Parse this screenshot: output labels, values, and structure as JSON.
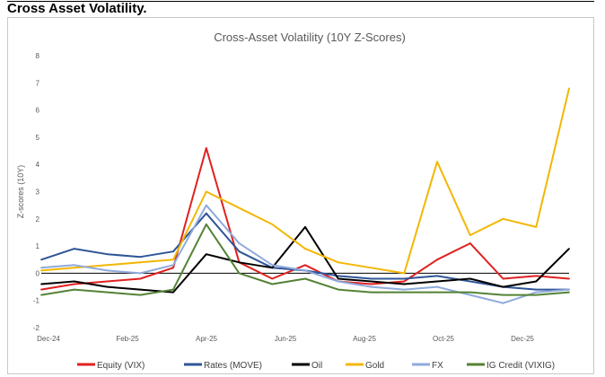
{
  "page": {
    "heading": "Cross Asset Volatility."
  },
  "chart_data": {
    "type": "line",
    "title": "Cross-Asset Volatility (10Y Z-Scores)",
    "ylabel": "Z-scores (10Y)",
    "xlabel": "",
    "ylim": [
      -2,
      8
    ],
    "yticks": [
      -2,
      -1,
      0,
      1,
      2,
      3,
      4,
      5,
      6,
      7,
      8
    ],
    "x_ticks": [
      "Dec-24",
      "Feb-25",
      "Apr-25",
      "Jun-25",
      "Aug-25",
      "Oct-25",
      "Dec-25"
    ],
    "x_points": [
      "Dec-24",
      "Jan-25",
      "Feb-25",
      "Mar-25",
      "Apr-25 early",
      "Apr-25",
      "Apr-25 late",
      "May-25",
      "Jun-25",
      "Jul-25",
      "Aug-25",
      "Sep-25",
      "Oct-25",
      "Nov-25",
      "Dec-25",
      "Jan-26",
      "Feb-26"
    ],
    "grid": false,
    "legend_position": "bottom",
    "zero_line": true,
    "series": [
      {
        "name": "Equity (VIX)",
        "color": "#e02020",
        "values": [
          -0.6,
          -0.4,
          -0.3,
          -0.2,
          0.2,
          4.6,
          0.4,
          -0.2,
          0.3,
          -0.3,
          -0.4,
          -0.3,
          0.5,
          1.1,
          -0.2,
          -0.1,
          -0.2
        ]
      },
      {
        "name": "Rates (MOVE)",
        "color": "#2f5597",
        "values": [
          0.5,
          0.9,
          0.7,
          0.6,
          0.8,
          2.2,
          0.8,
          0.2,
          0.1,
          -0.1,
          -0.2,
          -0.2,
          -0.1,
          -0.3,
          -0.5,
          -0.6,
          -0.6
        ]
      },
      {
        "name": "Oil",
        "color": "#000000",
        "values": [
          -0.4,
          -0.3,
          -0.5,
          -0.6,
          -0.7,
          0.7,
          0.4,
          0.2,
          1.7,
          -0.2,
          -0.3,
          -0.4,
          -0.3,
          -0.2,
          -0.5,
          -0.3,
          0.9
        ]
      },
      {
        "name": "Gold",
        "color": "#f2b705",
        "values": [
          0.1,
          0.2,
          0.3,
          0.4,
          0.5,
          3.0,
          2.4,
          1.8,
          0.9,
          0.4,
          0.2,
          0.0,
          4.1,
          1.4,
          2.0,
          1.7,
          6.8
        ]
      },
      {
        "name": "FX",
        "color": "#8faadc",
        "values": [
          0.2,
          0.3,
          0.1,
          0.0,
          0.3,
          2.5,
          1.1,
          0.3,
          0.1,
          -0.3,
          -0.5,
          -0.6,
          -0.5,
          -0.8,
          -1.1,
          -0.7,
          -0.6
        ]
      },
      {
        "name": "IG Credit (VIXIG)",
        "color": "#548235",
        "values": [
          -0.8,
          -0.6,
          -0.7,
          -0.8,
          -0.6,
          1.8,
          0.0,
          -0.4,
          -0.2,
          -0.6,
          -0.7,
          -0.7,
          -0.7,
          -0.7,
          -0.8,
          -0.8,
          -0.7
        ]
      }
    ]
  }
}
